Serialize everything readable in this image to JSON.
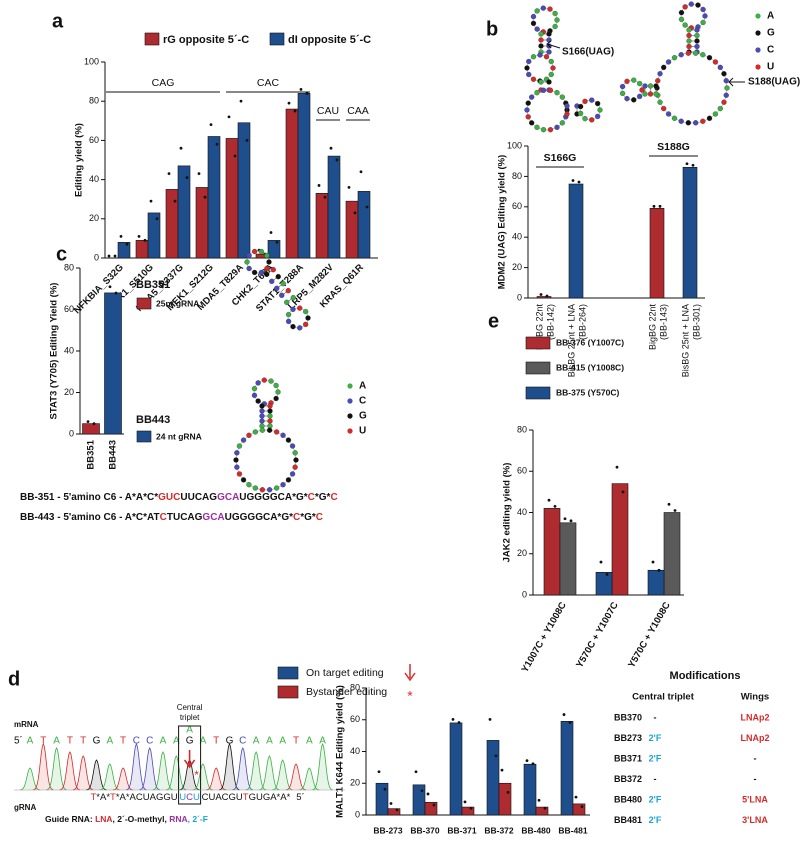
{
  "panel_labels": [
    "a",
    "b",
    "c",
    "d",
    "e"
  ],
  "chart_data": [
    {
      "type": "bar",
      "y_label": "Editing yield (%)",
      "categories": [
        "NFKBIA_S32G",
        "TBK1_S510G",
        "MDA5_R337G",
        "MEK1_S212G",
        "MDA5_T829A",
        "CHK2_T68A",
        "STAT1_T288A",
        "LRP5_M282V",
        "KRAS_Q61R"
      ],
      "series": [
        {
          "name": "rG opposite 5´-C",
          "color": "#ae2b2f",
          "values": [
            0,
            9,
            35,
            36,
            61,
            2,
            76,
            33,
            29
          ],
          "replicates": [
            [
              0,
              0
            ],
            [
              10,
              8
            ],
            [
              42,
              28
            ],
            [
              42,
              30
            ],
            [
              71,
              51
            ],
            [
              3,
              1
            ],
            [
              78,
              74
            ],
            [
              36,
              30
            ],
            [
              35,
              22
            ]
          ]
        },
        {
          "name": "dI opposite 5´-C",
          "color": "#1f4e8c",
          "values": [
            8,
            23,
            47,
            62,
            69,
            9,
            84,
            52,
            34
          ],
          "replicates": [
            [
              10,
              6
            ],
            [
              28,
              19
            ],
            [
              55,
              40
            ],
            [
              67,
              57
            ],
            [
              79,
              59
            ],
            [
              12,
              7
            ],
            [
              85,
              83
            ],
            [
              55,
              49
            ],
            [
              43,
              25
            ]
          ]
        }
      ],
      "group_labels": [
        "CAG",
        "CAC",
        "CAU",
        "CAA"
      ],
      "ylim": [
        0,
        100
      ],
      "yticks": [
        0,
        20,
        40,
        60,
        80,
        100
      ]
    },
    {
      "type": "bar",
      "y_label": "MDM2 (UAG) Editing yield (%)",
      "categories": [
        "BigBG 22nt",
        "BisBG 25nt + LNA",
        "BigBG 22nt",
        "BisBG 25nt + LNA"
      ],
      "category_ids": [
        "(BB-142)",
        "(BB-264)",
        "(BB-143)",
        "(BB-301)"
      ],
      "values": [
        1,
        75,
        59,
        86
      ],
      "colors": [
        "#ae2b2f",
        "#1f4e8c",
        "#ae2b2f",
        "#1f4e8c"
      ],
      "replicates": [
        [
          1,
          0
        ],
        [
          76,
          75
        ],
        [
          59,
          59
        ],
        [
          87,
          86
        ]
      ],
      "group_labels": [
        "S166G",
        "S188G"
      ],
      "ylim": [
        0,
        100
      ],
      "yticks": [
        0,
        20,
        40,
        60,
        80,
        100
      ]
    },
    {
      "type": "bar",
      "y_label": "STAT3 (Y705) Editing Yield (%)",
      "categories": [
        "BB351",
        "BB443"
      ],
      "values": [
        5,
        68
      ],
      "colors": [
        "#ae2b2f",
        "#1f4e8c"
      ],
      "replicates": [
        [
          5,
          4
        ],
        [
          70,
          67
        ]
      ],
      "legend": [
        {
          "title": "BB351",
          "name": "25nt gRNA"
        },
        {
          "title": "BB443",
          "name": "24 nt gRNA"
        }
      ],
      "ylim": [
        0,
        80
      ],
      "yticks": [
        0,
        20,
        40,
        60,
        80
      ]
    },
    {
      "type": "bar",
      "y_label": "JAK2 editing yield (%)",
      "categories": [
        "Y1007C + Y1008C",
        "Y570C + Y1007C",
        "Y570C + Y1008C"
      ],
      "series": [
        {
          "name": "BB-376 (Y1007C)",
          "color": "#ae2b2f",
          "values": [
            42,
            54,
            null
          ],
          "replicates": [
            [
              45,
              42
            ],
            [
              61,
              49
            ],
            null
          ]
        },
        {
          "name": "BB-415 (Y1008C)",
          "color": "#5a5a5a",
          "values": [
            35,
            null,
            40
          ],
          "replicates": [
            [
              36,
              35
            ],
            null,
            [
              43,
              40
            ]
          ]
        },
        {
          "name": "BB-375 (Y570C)",
          "color": "#1f4e8c",
          "values": [
            null,
            11,
            12
          ],
          "replicates": [
            null,
            [
              15,
              9
            ],
            [
              15,
              11
            ]
          ]
        }
      ],
      "ylim": [
        0,
        80
      ],
      "yticks": [
        0,
        20,
        40,
        60,
        80
      ]
    },
    {
      "type": "bar",
      "y_label": "MALT1 K644 Editing yield (%)",
      "categories": [
        "BB-273",
        "BB-370",
        "BB-371",
        "BB-372",
        "BB-480",
        "BB-481"
      ],
      "series": [
        {
          "name": "On target editing",
          "color": "#1f4e8c",
          "values": [
            20,
            19,
            58,
            47,
            32,
            59
          ],
          "replicates": [
            [
              26,
              15
            ],
            [
              26,
              14
            ],
            [
              59,
              57
            ],
            [
              59,
              36
            ],
            [
              33,
              31
            ],
            [
              62,
              57
            ]
          ]
        },
        {
          "name": "Bystander editing",
          "color": "#ae2b2f",
          "values": [
            4,
            8,
            5,
            20,
            5,
            7
          ],
          "replicates": [
            [
              6,
              2
            ],
            [
              12,
              5
            ],
            [
              7,
              3
            ],
            [
              27,
              13
            ],
            [
              8,
              3
            ],
            [
              10,
              4
            ]
          ]
        }
      ],
      "ylim": [
        0,
        80
      ],
      "yticks": [
        0,
        20,
        40,
        60,
        80
      ]
    }
  ],
  "structures": {
    "b": {
      "site_labels": [
        "S166(UAG)",
        "S188(UAG)"
      ],
      "legend": [
        {
          "name": "A",
          "color": "#3cb044"
        },
        {
          "name": "G",
          "color": "#111111"
        },
        {
          "name": "C",
          "color": "#4a4ab8"
        },
        {
          "name": "U",
          "color": "#d62a2a"
        }
      ]
    },
    "c": {
      "legend": [
        {
          "name": "A",
          "color": "#3cb044"
        },
        {
          "name": "C",
          "color": "#4a4ab8"
        },
        {
          "name": "G",
          "color": "#111111"
        },
        {
          "name": "U",
          "color": "#d62a2a"
        }
      ]
    }
  },
  "sequences": [
    [
      {
        "text": "BB-351 - 5'amino C6 - A*A*C*",
        "color": "#111111"
      },
      {
        "text": "GUC",
        "color": "#d62a2a"
      },
      {
        "text": "UUCAG",
        "color": "#111111"
      },
      {
        "text": "GCA",
        "color": "#9b30a0"
      },
      {
        "text": "UGGGGCA*G*",
        "color": "#111111"
      },
      {
        "text": "C",
        "color": "#d62a2a"
      },
      {
        "text": "*G*",
        "color": "#111111"
      },
      {
        "text": "C",
        "color": "#d62a2a"
      }
    ],
    [
      {
        "text": "BB-443 - 5'amino C6 - A*C*AT",
        "color": "#111111"
      },
      {
        "text": "C",
        "color": "#d62a2a"
      },
      {
        "text": "TUCAG",
        "color": "#111111"
      },
      {
        "text": "GCA",
        "color": "#9b30a0"
      },
      {
        "text": "UGGGGCA*G*",
        "color": "#111111"
      },
      {
        "text": "C",
        "color": "#d62a2a"
      },
      {
        "text": "*G*",
        "color": "#111111"
      },
      {
        "text": "C",
        "color": "#d62a2a"
      }
    ]
  ],
  "chromatogram": {
    "bystander_marker": "*",
    "box_label": [
      "Central",
      "triplet"
    ],
    "mrna": {
      "label": "mRNA",
      "five_prime": "5´",
      "left": [
        "A",
        "T",
        "A",
        "T",
        "T",
        "G",
        "A",
        "T",
        "C",
        "C",
        "A",
        "A"
      ],
      "triplet_top": "A",
      "triplet_row": "G",
      "right": [
        "A",
        "T",
        "G",
        "C",
        "A",
        "A",
        "A",
        "T",
        "A",
        "A"
      ]
    },
    "grna": {
      "label": "gRNA",
      "end": "5´",
      "left": [
        {
          "text": "T",
          "color": "#d62a2a"
        },
        {
          "text": "*A*",
          "color": "#111111"
        },
        {
          "text": "T",
          "color": "#d62a2a"
        },
        {
          "text": "*A*ACUAGGU",
          "color": "#111111"
        }
      ],
      "triplet": [
        {
          "text": "U",
          "color": "#1aa3d9"
        },
        {
          "text": "C",
          "color": "#9b30a0"
        },
        {
          "text": "U",
          "color": "#1aa3d9"
        }
      ],
      "right": [
        {
          "text": "CUACGU",
          "color": "#111111"
        },
        {
          "text": "T",
          "color": "#d62a2a"
        },
        {
          "text": "GUGA*A*",
          "color": "#111111"
        }
      ]
    },
    "guide_legend": [
      {
        "text": "Guide RNA: ",
        "color": "#111111"
      },
      {
        "text": "LNA",
        "color": "#d62a2a"
      },
      {
        "text": ", 2´-O-methyl, ",
        "color": "#111111"
      },
      {
        "text": "RNA",
        "color": "#9b30a0"
      },
      {
        "text": ", 2´-F",
        "color": "#1aa3d9"
      }
    ]
  },
  "modifications": {
    "title": "Modifications",
    "columns": [
      "Central triplet",
      "Wings"
    ],
    "rows": [
      [
        "BB370",
        "-",
        "LNAp2"
      ],
      [
        "BB273",
        "2'F",
        "LNAp2"
      ],
      [
        "BB371",
        "2'F",
        "-"
      ],
      [
        "BB372",
        "-",
        "-"
      ],
      [
        "BB480",
        "2'F",
        "5'LNA"
      ],
      [
        "BB481",
        "2'F",
        "3'LNA"
      ]
    ]
  }
}
